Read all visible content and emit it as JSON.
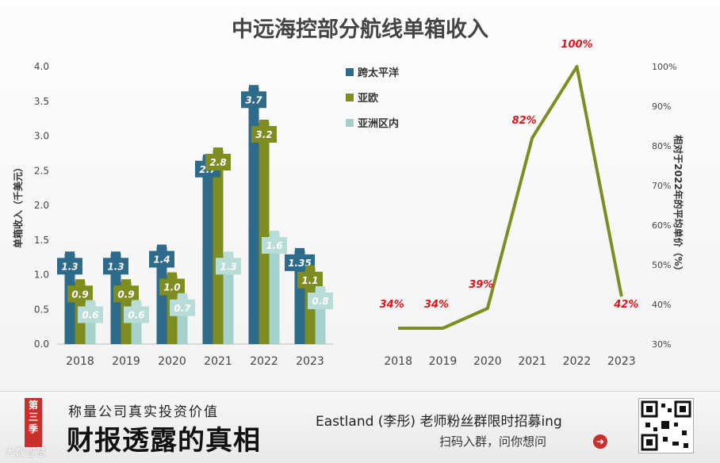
{
  "chart_data": [
    {
      "type": "bar",
      "title": "中远海控部分航线单箱收入",
      "ylabel": "单箱收入（千美元）",
      "ylim": [
        0,
        4.0
      ],
      "yticks": [
        "0.0",
        "0.5",
        "1.0",
        "1.5",
        "2.0",
        "2.5",
        "3.0",
        "3.5",
        "4.0"
      ],
      "categories": [
        "2018",
        "2019",
        "2020",
        "2021",
        "2022",
        "2023"
      ],
      "series": [
        {
          "name": "跨太平洋",
          "color": "#2e6b8a",
          "values": [
            1.3,
            1.3,
            1.4,
            2.7,
            3.7,
            1.35
          ],
          "labels": [
            "1.3",
            "1.3",
            "1.4",
            "2.7",
            "3.7",
            "1.35"
          ]
        },
        {
          "name": "亚欧",
          "color": "#7f8c1f",
          "values": [
            0.9,
            0.9,
            1.0,
            2.8,
            3.2,
            1.1
          ],
          "labels": [
            "0.9",
            "0.9",
            "1.0",
            "2.8",
            "3.2",
            "1.1"
          ]
        },
        {
          "name": "亚洲区内",
          "color": "#a4d1cc",
          "values": [
            0.6,
            0.6,
            0.7,
            1.3,
            1.6,
            0.8
          ],
          "labels": [
            "0.6",
            "0.6",
            "0.7",
            "1.3",
            "1.6",
            "0.8"
          ]
        }
      ]
    },
    {
      "type": "line",
      "ylabel": "相对于2022年的平均单价（%）",
      "ylim": [
        30,
        100
      ],
      "yticks": [
        "30%",
        "40%",
        "50%",
        "60%",
        "70%",
        "80%",
        "90%",
        "100%"
      ],
      "categories": [
        "2018",
        "2019",
        "2020",
        "2021",
        "2022",
        "2023"
      ],
      "series": [
        {
          "name": "相对于2022年的平均单价",
          "color": "#7f8c1f",
          "values": [
            34,
            34,
            39,
            82,
            100,
            42
          ],
          "labels": [
            "34%",
            "34%",
            "39%",
            "82%",
            "100%",
            "42%"
          ]
        }
      ]
    }
  ],
  "footer": {
    "season": "第三季",
    "slogan": "称量公司真实投资价值",
    "brand": "财报透露的真相",
    "recruit": "Eastland (李彤) 老师粉丝群限时招募ing",
    "scan": "扫码入群，问你想问",
    "arrow_icon": "➜",
    "watermark": "大数智慧"
  }
}
